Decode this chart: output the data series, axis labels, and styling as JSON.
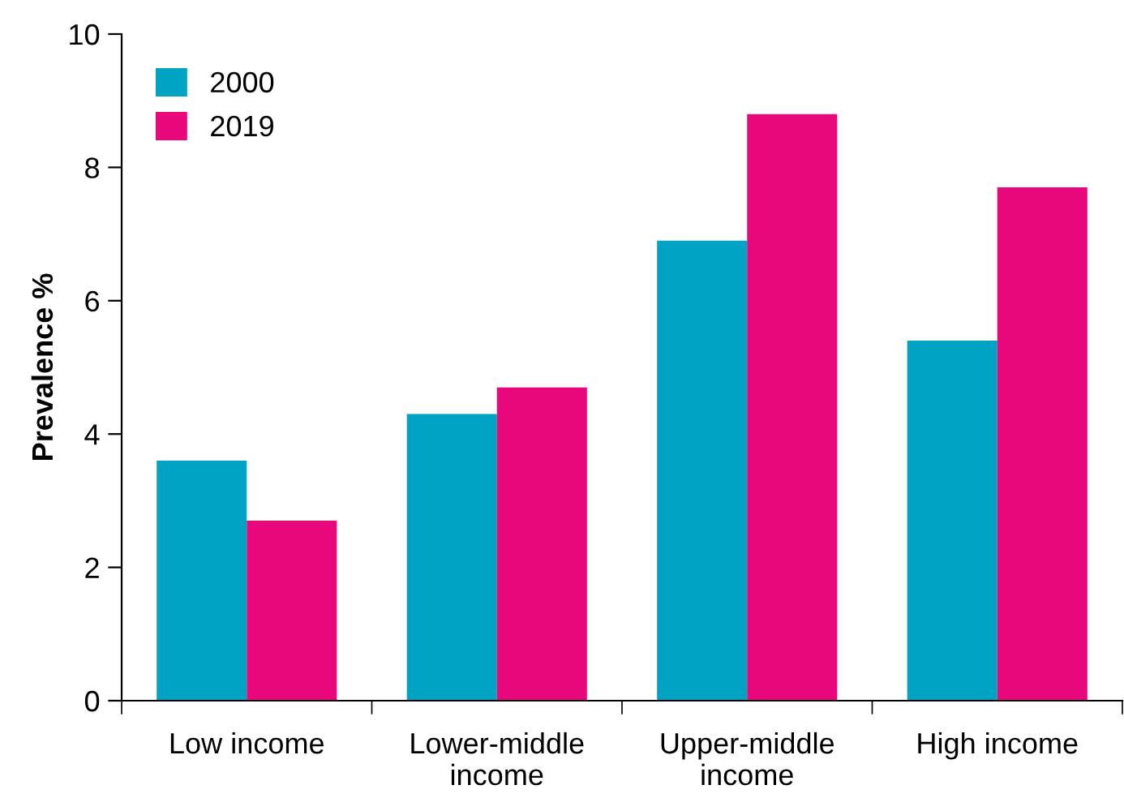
{
  "chart_data": {
    "type": "bar",
    "ylabel": "Prevalence %",
    "categories": [
      "Low income",
      "Lower-middle\nincome",
      "Upper-middle\nincome",
      "High income"
    ],
    "series": [
      {
        "name": "2000",
        "color": "#00a3c4",
        "values": [
          3.6,
          4.3,
          6.9,
          5.4
        ]
      },
      {
        "name": "2019",
        "color": "#e8087c",
        "values": [
          2.7,
          4.7,
          8.8,
          7.7
        ]
      }
    ],
    "ylim": [
      0,
      10
    ],
    "yticks": [
      0,
      2,
      4,
      6,
      8,
      10
    ],
    "grid": false,
    "legend": "top left"
  }
}
